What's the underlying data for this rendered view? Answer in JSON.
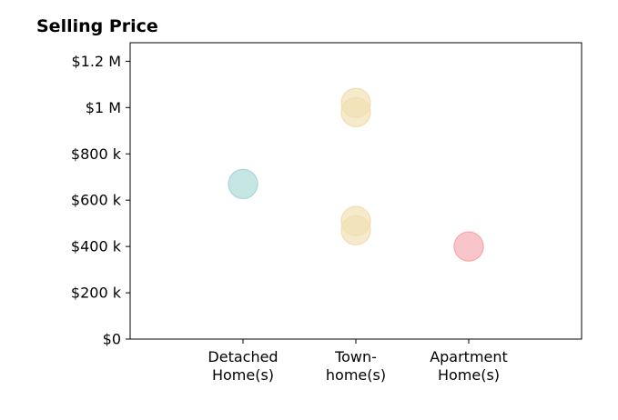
{
  "chart_data": {
    "type": "scatter",
    "title": "Selling Price",
    "xlabel": "",
    "ylabel": "",
    "categories": [
      [
        "Detached",
        "Home(s)"
      ],
      [
        "Town-",
        "home(s)"
      ],
      [
        "Apartment",
        "Home(s)"
      ]
    ],
    "y_ticks": [
      {
        "value": 0,
        "label": "$0"
      },
      {
        "value": 200000,
        "label": "$200 k"
      },
      {
        "value": 400000,
        "label": "$400 k"
      },
      {
        "value": 600000,
        "label": "$600 k"
      },
      {
        "value": 800000,
        "label": "$800 k"
      },
      {
        "value": 1000000,
        "label": "$1 M"
      },
      {
        "value": 1200000,
        "label": "$1.2 M"
      }
    ],
    "ylim": [
      0,
      1280000
    ],
    "xlim": [
      0,
      4
    ],
    "grid": false,
    "legend": "none",
    "points": [
      {
        "category": "Detached Home(s)",
        "x": 1,
        "y": 670000,
        "color": "#a7d8d6"
      },
      {
        "category": "Town-home(s)",
        "x": 2,
        "y": 1020000,
        "color": "#f1deb1"
      },
      {
        "category": "Town-home(s)",
        "x": 2,
        "y": 980000,
        "color": "#f1deb1"
      },
      {
        "category": "Town-home(s)",
        "x": 2,
        "y": 510000,
        "color": "#f1deb1"
      },
      {
        "category": "Town-home(s)",
        "x": 2,
        "y": 470000,
        "color": "#f1deb1"
      },
      {
        "category": "Apartment Home(s)",
        "x": 3,
        "y": 400000,
        "color": "#f4a8ad"
      }
    ]
  }
}
